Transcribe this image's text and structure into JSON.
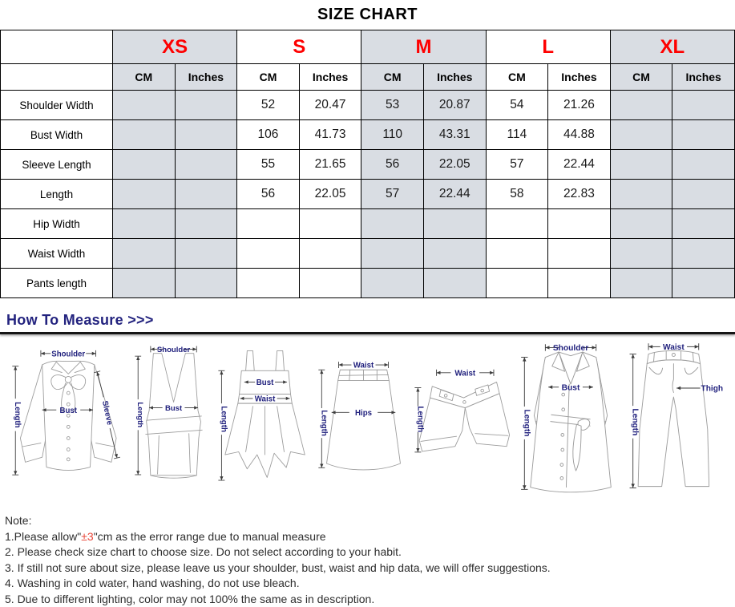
{
  "title": "SIZE CHART",
  "table": {
    "unit_labels": [
      "CM",
      "Inches"
    ],
    "sizes": [
      {
        "label": "XS",
        "shaded": true
      },
      {
        "label": "S",
        "shaded": false
      },
      {
        "label": "M",
        "shaded": true
      },
      {
        "label": "L",
        "shaded": false
      },
      {
        "label": "XL",
        "shaded": true
      }
    ],
    "rows": [
      {
        "label": "Shoulder Width",
        "cells": [
          "",
          "",
          "52",
          "20.47",
          "53",
          "20.87",
          "54",
          "21.26",
          "",
          ""
        ]
      },
      {
        "label": "Bust Width",
        "cells": [
          "",
          "",
          "106",
          "41.73",
          "110",
          "43.31",
          "114",
          "44.88",
          "",
          ""
        ]
      },
      {
        "label": "Sleeve Length",
        "cells": [
          "",
          "",
          "55",
          "21.65",
          "56",
          "22.05",
          "57",
          "22.44",
          "",
          ""
        ]
      },
      {
        "label": "Length",
        "cells": [
          "",
          "",
          "56",
          "22.05",
          "57",
          "22.44",
          "58",
          "22.83",
          "",
          ""
        ]
      },
      {
        "label": "Hip Width",
        "cells": [
          "",
          "",
          "",
          "",
          "",
          "",
          "",
          "",
          "",
          ""
        ]
      },
      {
        "label": "Waist Width",
        "cells": [
          "",
          "",
          "",
          "",
          "",
          "",
          "",
          "",
          "",
          ""
        ]
      },
      {
        "label": "Pants length",
        "cells": [
          "",
          "",
          "",
          "",
          "",
          "",
          "",
          "",
          "",
          ""
        ]
      }
    ]
  },
  "measure": {
    "heading": "How To Measure >>>",
    "labels": {
      "shoulder": "Shoulder",
      "bust": "Bust",
      "sleeve": "Sleeve",
      "length": "Length",
      "waist": "Waist",
      "hips": "Hips",
      "thigh": "Thigh"
    },
    "diagrams": [
      {
        "garment": "blouse",
        "measurements": [
          "shoulder",
          "bust",
          "sleeve",
          "length"
        ]
      },
      {
        "garment": "tank-top",
        "measurements": [
          "shoulder",
          "bust",
          "length"
        ]
      },
      {
        "garment": "slip-dress",
        "measurements": [
          "bust",
          "waist",
          "length"
        ]
      },
      {
        "garment": "a-line-skirt",
        "measurements": [
          "waist",
          "hips",
          "length"
        ]
      },
      {
        "garment": "shorts",
        "measurements": [
          "waist",
          "length"
        ]
      },
      {
        "garment": "trench-coat",
        "measurements": [
          "shoulder",
          "bust",
          "length"
        ]
      },
      {
        "garment": "pants",
        "measurements": [
          "waist",
          "thigh",
          "length"
        ]
      }
    ]
  },
  "notes": {
    "heading": "Note:",
    "line1": {
      "prefix": "1.Please allow\"",
      "highlight": "±3",
      "suffix": "\"cm as the error range due to manual measure"
    },
    "lines": [
      "2. Please check size chart to choose size. Do not select according to your habit.",
      "3. If still not sure about size, please leave us your shoulder, bust, waist and hip data, we will offer suggestions.",
      "4. Washing in cold water, hand washing, do not use bleach.",
      "5. Due to different lighting, color may not 100% the same as in description."
    ]
  },
  "colors": {
    "size_label_red": "#fe0000",
    "measure_navy": "#22227e",
    "shaded_cell": "#d9dde3",
    "note_highlight_red": "#e8483b"
  }
}
